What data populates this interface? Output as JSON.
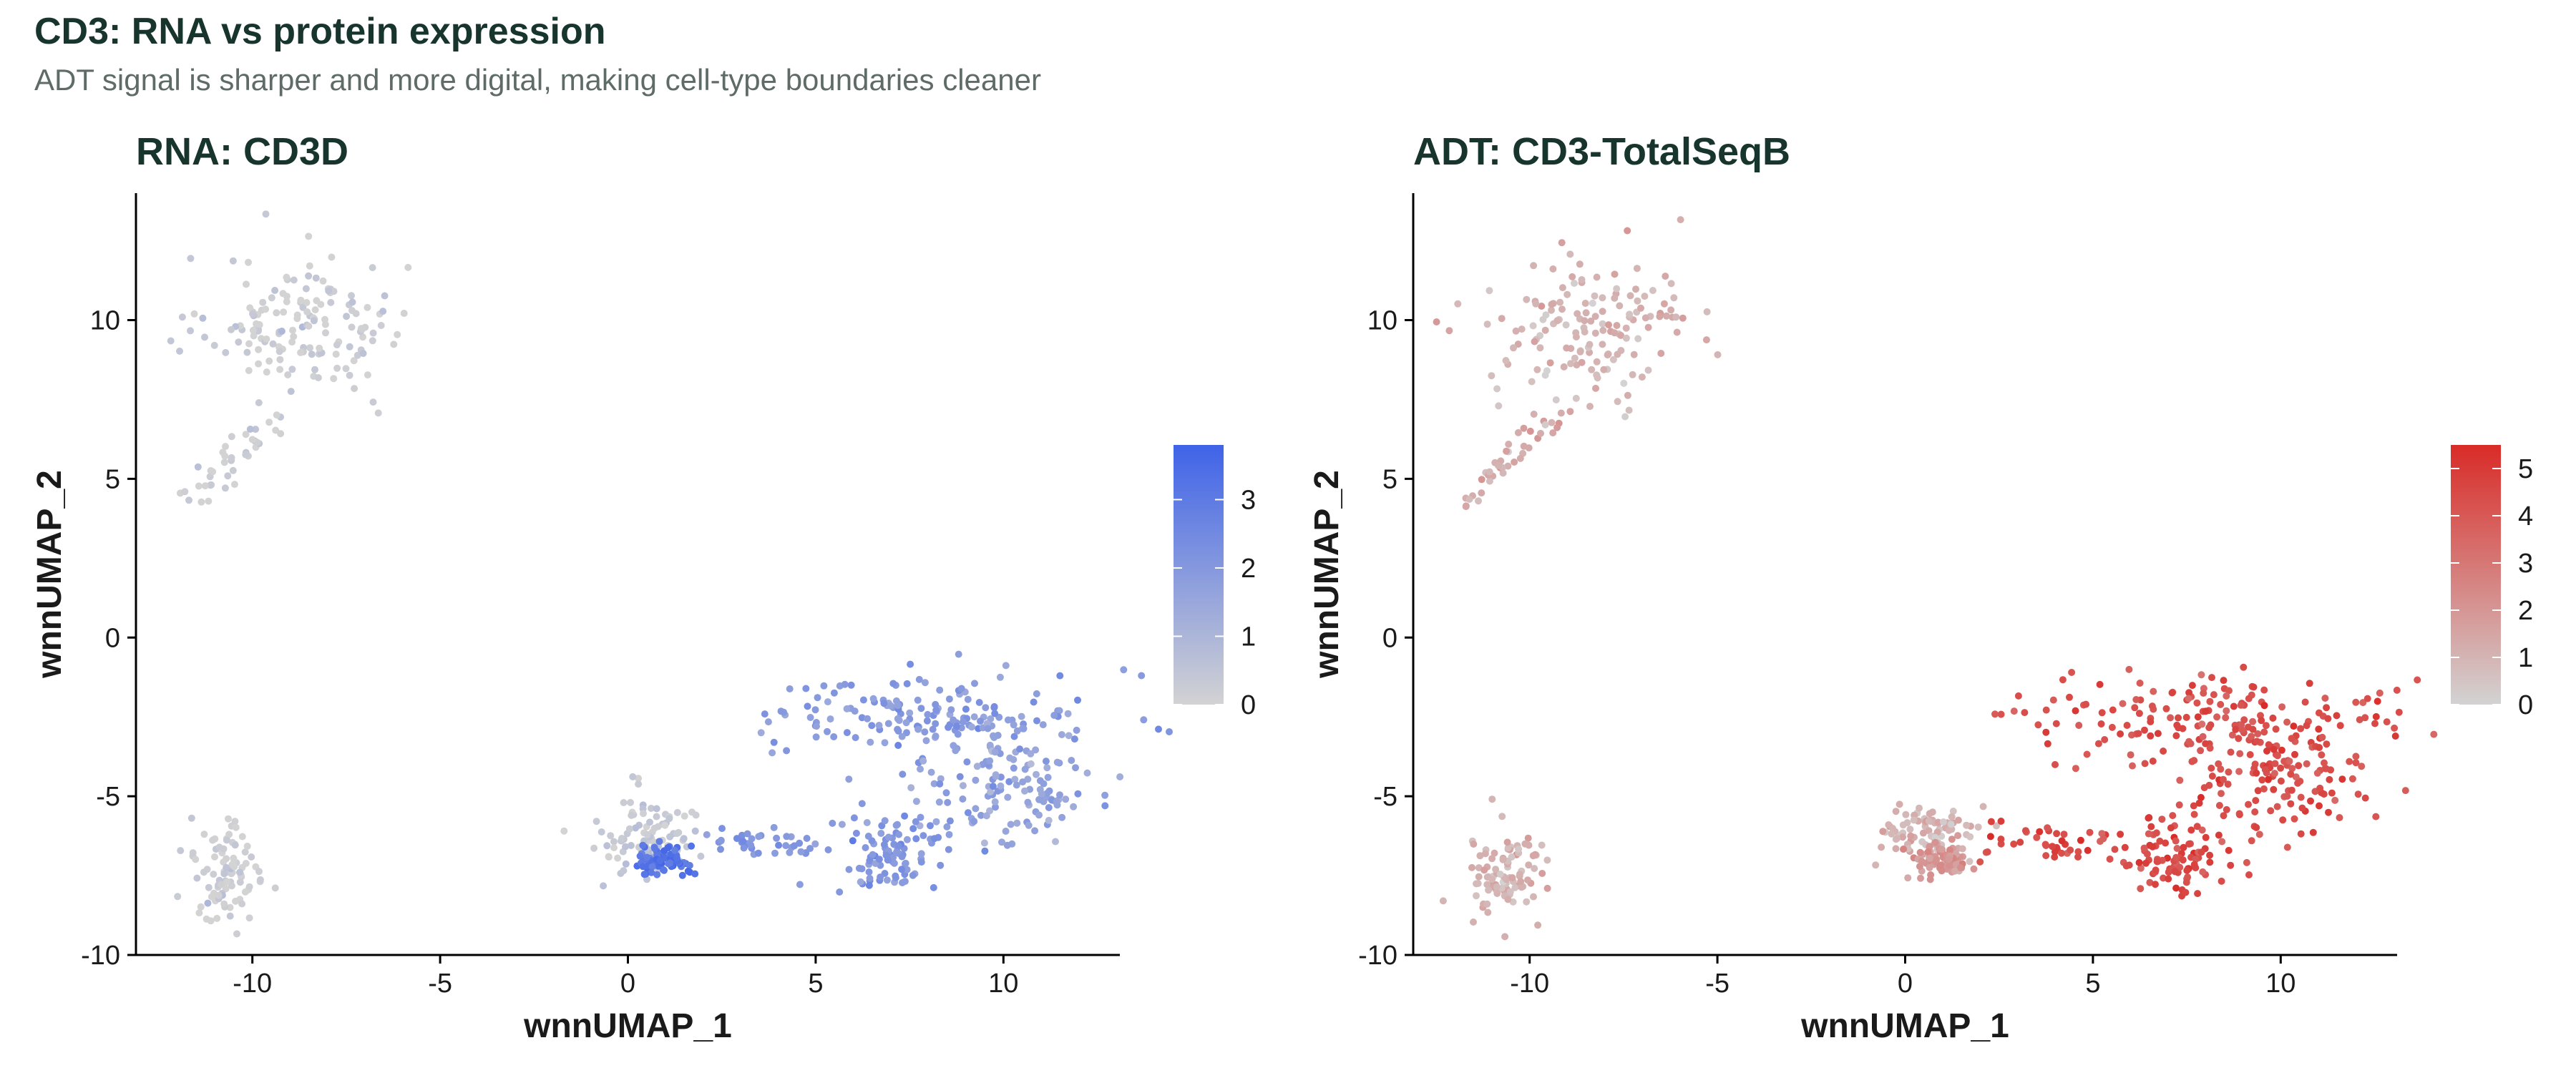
{
  "title": "CD3: RNA vs protein expression",
  "subtitle": "ADT signal is sharper and more digital, making cell-type boundaries cleaner",
  "chart_data": [
    {
      "type": "scatter",
      "title": "RNA: CD3D",
      "xlabel": "wnnUMAP_1",
      "ylabel": "wnnUMAP_2",
      "xlim": [
        -13.1,
        13.1
      ],
      "ylim": [
        -10.0,
        14.0
      ],
      "xticks": [
        "-10",
        "-5",
        "0",
        "5",
        "10"
      ],
      "xtick_values": [
        -10,
        -5,
        0,
        5,
        10
      ],
      "yticks": [
        "-10",
        "-5",
        "0",
        "5",
        "10"
      ],
      "ytick_values": [
        -10,
        -5,
        0,
        5,
        10
      ],
      "grid": false,
      "legend": "right",
      "colorscale": {
        "low": "#d3d3d3",
        "high": "#3f63e8",
        "min": 0,
        "max": 3.8,
        "ticks": [
          "0",
          "1",
          "2",
          "3"
        ],
        "tick_values": [
          0,
          1,
          2,
          3
        ]
      },
      "clusters": [
        {
          "name": "upper-left group",
          "center": [
            -8.5,
            9.8
          ],
          "spread": [
            1.3,
            1.1
          ],
          "value": 0.1
        },
        {
          "name": "upper-left tail",
          "from": [
            -11.8,
            4.2
          ],
          "to": [
            -9.3,
            7.0
          ],
          "value": 0.05
        },
        {
          "name": "lower-left group",
          "center": [
            -10.7,
            -7.4
          ],
          "spread": [
            0.5,
            0.9
          ],
          "value": 0.1
        },
        {
          "name": "central small group",
          "center": [
            0.6,
            -6.2
          ],
          "spread": [
            0.7,
            0.6
          ],
          "value": 0.3
        },
        {
          "name": "central dense spot",
          "center": [
            0.9,
            -7.0
          ],
          "spread": [
            0.35,
            0.25
          ],
          "value": 3.2
        },
        {
          "name": "left arm",
          "from": [
            2.3,
            -6.3
          ],
          "to": [
            5.2,
            -6.5
          ],
          "value": 2.0
        },
        {
          "name": "arc",
          "center": [
            8.0,
            -2.5
          ],
          "spread": [
            2.2,
            0.7
          ],
          "value": 1.9
        },
        {
          "name": "right blob",
          "center": [
            10.2,
            -4.5
          ],
          "spread": [
            1.2,
            0.9
          ],
          "value": 1.6
        },
        {
          "name": "lower lobe",
          "center": [
            7.0,
            -6.8
          ],
          "spread": [
            0.8,
            0.6
          ],
          "value": 2.0
        }
      ]
    },
    {
      "type": "scatter",
      "title": "ADT: CD3-TotalSeqB",
      "xlabel": "wnnUMAP_1",
      "ylabel": "wnnUMAP_2",
      "xlim": [
        -13.1,
        13.1
      ],
      "ylim": [
        -10.0,
        14.0
      ],
      "xticks": [
        "-10",
        "-5",
        "0",
        "5",
        "10"
      ],
      "xtick_values": [
        -10,
        -5,
        0,
        5,
        10
      ],
      "yticks": [
        "-10",
        "-5",
        "0",
        "5",
        "10"
      ],
      "ytick_values": [
        -10,
        -5,
        0,
        5,
        10
      ],
      "grid": false,
      "legend": "right",
      "colorscale": {
        "low": "#d3d3d3",
        "high": "#d92b27",
        "min": 0,
        "max": 5.5,
        "ticks": [
          "0",
          "1",
          "2",
          "3",
          "4",
          "5"
        ],
        "tick_values": [
          0,
          1,
          2,
          3,
          4,
          5
        ]
      },
      "clusters": [
        {
          "name": "upper-left group",
          "center": [
            -8.5,
            9.8
          ],
          "spread": [
            1.3,
            1.1
          ],
          "value": 1.0
        },
        {
          "name": "upper-left tail",
          "from": [
            -11.8,
            4.2
          ],
          "to": [
            -9.3,
            7.0
          ],
          "value": 1.3
        },
        {
          "name": "lower-left group",
          "center": [
            -10.7,
            -7.4
          ],
          "spread": [
            0.5,
            0.9
          ],
          "value": 1.0
        },
        {
          "name": "central small group",
          "center": [
            0.6,
            -6.2
          ],
          "spread": [
            0.7,
            0.6
          ],
          "value": 1.0
        },
        {
          "name": "central dense spot",
          "center": [
            0.9,
            -7.0
          ],
          "spread": [
            0.35,
            0.25
          ],
          "value": 2.0
        },
        {
          "name": "left arm",
          "from": [
            2.3,
            -6.3
          ],
          "to": [
            5.2,
            -6.5
          ],
          "value": 4.6
        },
        {
          "name": "arc",
          "center": [
            8.0,
            -2.5
          ],
          "spread": [
            2.2,
            0.7
          ],
          "value": 4.3
        },
        {
          "name": "right blob",
          "center": [
            10.2,
            -4.5
          ],
          "spread": [
            1.2,
            0.9
          ],
          "value": 4.4
        },
        {
          "name": "lower lobe",
          "center": [
            7.0,
            -6.8
          ],
          "spread": [
            0.8,
            0.6
          ],
          "value": 4.4
        }
      ]
    }
  ]
}
